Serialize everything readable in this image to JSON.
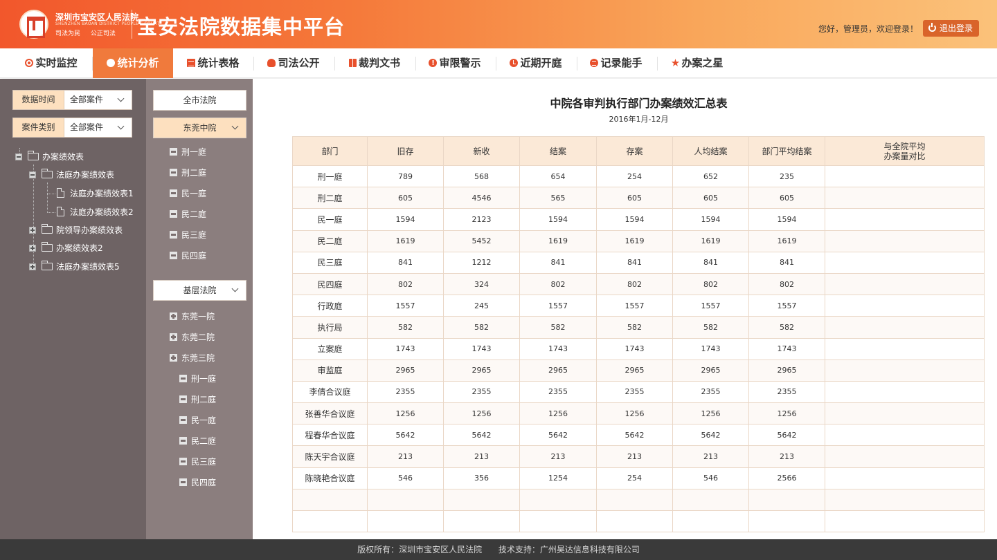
{
  "header": {
    "court_name": "深圳市宝安区人民法院",
    "court_name_en": "SHENZHEN BAOAN DISTRICT PEOPLE'S COURT",
    "motto": "司法为民  公正司法",
    "platform_title": "宝安法院数据集中平台",
    "greeting": "您好，管理员，欢迎登录！",
    "logout_label": "退出登录"
  },
  "nav": {
    "items": [
      {
        "label": "实时监控",
        "icon": "target-icon"
      },
      {
        "label": "统计分析",
        "icon": "pie-chart-icon"
      },
      {
        "label": "统计表格",
        "icon": "list-icon"
      },
      {
        "label": "司法公开",
        "icon": "lightbulb-icon"
      },
      {
        "label": "裁判文书",
        "icon": "book-icon"
      },
      {
        "label": "审限警示",
        "icon": "warning-icon"
      },
      {
        "label": "近期开庭",
        "icon": "clock-icon"
      },
      {
        "label": "记录能手",
        "icon": "lines-icon"
      },
      {
        "label": "办案之星",
        "icon": "star-icon"
      }
    ],
    "active_index": 1,
    "accent_color": "#f07a3c"
  },
  "filters": {
    "time_label": "数据时间",
    "time_value": "全部案件",
    "type_label": "案件类别",
    "type_value": "全部案件"
  },
  "tree": {
    "root": "办案绩效表",
    "child1": "法庭办案绩效表",
    "leaf1": "法庭办案绩效表1",
    "leaf2": "法庭办案绩效表2",
    "child2": "院领导办案绩效表",
    "child3": "办案绩效表2",
    "child4": "法庭办案绩效表5"
  },
  "courts": {
    "city_btn": "全市法院",
    "mid_btn": "东莞中院",
    "mid_items": [
      "刑一庭",
      "刑二庭",
      "民一庭",
      "民二庭",
      "民三庭",
      "民四庭"
    ],
    "base_btn": "基层法院",
    "base_items": [
      "东莞一院",
      "东莞二院",
      "东莞三院"
    ],
    "base_sub_items": [
      "刑一庭",
      "刑二庭",
      "民一庭",
      "民二庭",
      "民三庭",
      "民四庭"
    ]
  },
  "report": {
    "title": "中院各审判执行部门办案绩效汇总表",
    "subtitle": "2016年1月-12月",
    "headers": [
      "部门",
      "旧存",
      "新收",
      "结案",
      "存案",
      "人均结案",
      "部门平均结案",
      "与全院平均\n办案量对比"
    ],
    "rows": [
      [
        "刑一庭",
        "789",
        "568",
        "654",
        "254",
        "652",
        "235",
        ""
      ],
      [
        "刑二庭",
        "605",
        "4546",
        "565",
        "605",
        "605",
        "605",
        ""
      ],
      [
        "民一庭",
        "1594",
        "2123",
        "1594",
        "1594",
        "1594",
        "1594",
        ""
      ],
      [
        "民二庭",
        "1619",
        "5452",
        "1619",
        "1619",
        "1619",
        "1619",
        ""
      ],
      [
        "民三庭",
        "841",
        "1212",
        "841",
        "841",
        "841",
        "841",
        ""
      ],
      [
        "民四庭",
        "802",
        "324",
        "802",
        "802",
        "802",
        "802",
        ""
      ],
      [
        "行政庭",
        "1557",
        "245",
        "1557",
        "1557",
        "1557",
        "1557",
        ""
      ],
      [
        "执行局",
        "582",
        "582",
        "582",
        "582",
        "582",
        "582",
        ""
      ],
      [
        "立案庭",
        "1743",
        "1743",
        "1743",
        "1743",
        "1743",
        "1743",
        ""
      ],
      [
        "审监庭",
        "2965",
        "2965",
        "2965",
        "2965",
        "2965",
        "2965",
        ""
      ],
      [
        "李倩合议庭",
        "2355",
        "2355",
        "2355",
        "2355",
        "2355",
        "2355",
        ""
      ],
      [
        "张善华合议庭",
        "1256",
        "1256",
        "1256",
        "1256",
        "1256",
        "1256",
        ""
      ],
      [
        "程春华合议庭",
        "5642",
        "5642",
        "5642",
        "5642",
        "5642",
        "5642",
        ""
      ],
      [
        "陈天宇合议庭",
        "213",
        "213",
        "213",
        "213",
        "213",
        "213",
        ""
      ],
      [
        "陈晓艳合议庭",
        "546",
        "356",
        "1254",
        "254",
        "546",
        "2566",
        ""
      ],
      [
        "",
        "",
        "",
        "",
        "",
        "",
        "",
        ""
      ],
      [
        "",
        "",
        "",
        "",
        "",
        "",
        "",
        ""
      ]
    ]
  },
  "footer": {
    "copyright": "版权所有：深圳市宝安区人民法院",
    "support": "技术支持：广州昊达信息科技有限公司"
  }
}
